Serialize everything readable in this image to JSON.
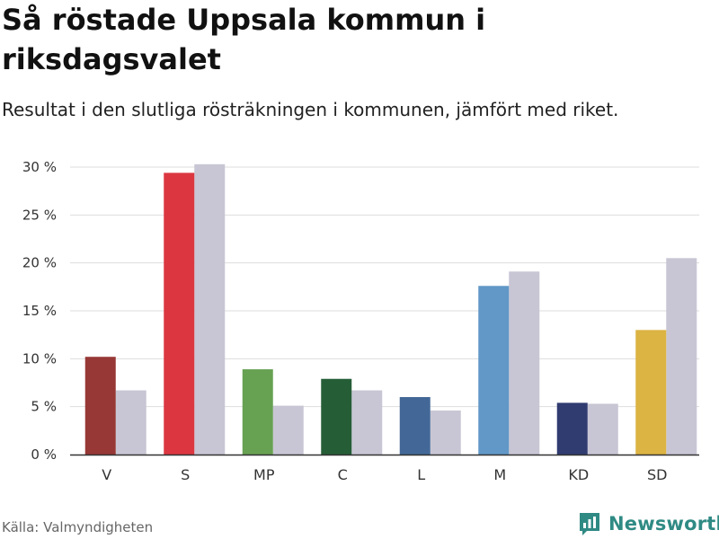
{
  "chart_data": {
    "type": "bar",
    "title": "Så röstade Uppsala kommun i riksdagsvalet",
    "subtitle": "Resultat i den slutliga rösträkningen i kommunen, jämfört med riket.",
    "categories": [
      "V",
      "S",
      "MP",
      "C",
      "L",
      "M",
      "KD",
      "SD"
    ],
    "series": [
      {
        "name": "Uppsala kommun",
        "values": [
          10.2,
          29.4,
          8.9,
          7.9,
          6.0,
          17.6,
          5.4,
          13.0
        ],
        "colors": [
          "#973836",
          "#dc3741",
          "#67a152",
          "#255d37",
          "#436898",
          "#6198c7",
          "#303b70",
          "#dcb443"
        ]
      },
      {
        "name": "Riket",
        "values": [
          6.7,
          30.3,
          5.1,
          6.7,
          4.6,
          19.1,
          5.3,
          20.5
        ],
        "color": "#c8c6d4"
      }
    ],
    "yticks": [
      0,
      5,
      10,
      15,
      20,
      25,
      30
    ],
    "ytick_labels": [
      "0 %",
      "5 %",
      "10 %",
      "15 %",
      "20 %",
      "25 %",
      "30 %"
    ],
    "ylim": [
      0,
      30
    ],
    "xlabel": "",
    "ylabel": "",
    "grid": true
  },
  "footer": {
    "source": "Källa: Valmyndigheten",
    "brand": "Newsworthy"
  },
  "colors": {
    "brand": "#2f8a84",
    "grid": "#dddddd",
    "axis": "#333333"
  }
}
